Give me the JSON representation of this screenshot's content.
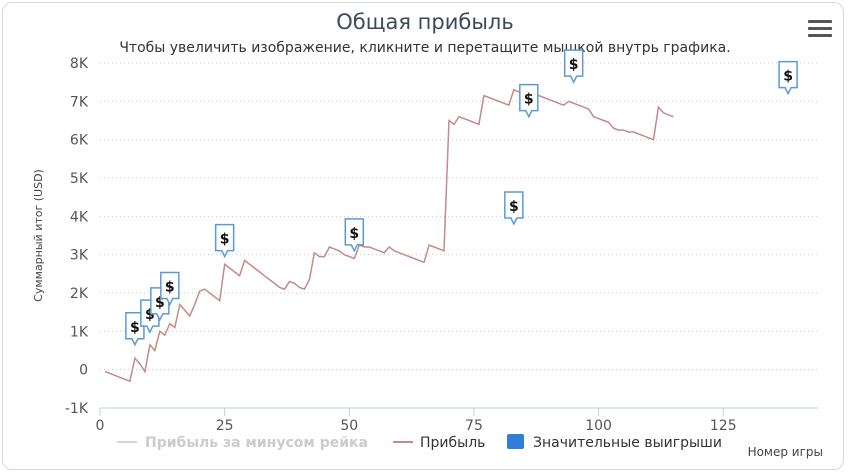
{
  "chart_data": {
    "type": "line",
    "title": "Общая прибыль",
    "subtitle": "Чтобы увеличить изображение, кликните и перетащите мышкой внутрь графика.",
    "xlabel": "Номер игры",
    "ylabel": "Суммарный итог (USD)",
    "xlim": [
      0,
      144
    ],
    "ylim": [
      -1000,
      8000
    ],
    "x_ticks": [
      0,
      25,
      50,
      75,
      100,
      125
    ],
    "x_tick_labels": [
      "0",
      "25",
      "50",
      "75",
      "100",
      "125"
    ],
    "y_ticks": [
      -1000,
      0,
      1000,
      2000,
      3000,
      4000,
      5000,
      6000,
      7000,
      8000
    ],
    "y_tick_labels": [
      "-1K",
      "0",
      "1K",
      "2K",
      "3K",
      "4K",
      "5K",
      "6K",
      "7K",
      "8K"
    ],
    "grid": "horizontal dotted",
    "legend_placement": "bottom",
    "series": [
      {
        "name": "Прибыль за минусом рейка",
        "color": "#d6d6d6",
        "hidden": true,
        "points": []
      },
      {
        "name": "Прибыль",
        "color": "#c48a8a",
        "points": [
          [
            1,
            -50
          ],
          [
            3,
            -150
          ],
          [
            5,
            -250
          ],
          [
            6,
            -300
          ],
          [
            7,
            300
          ],
          [
            8,
            150
          ],
          [
            9,
            -50
          ],
          [
            10,
            650
          ],
          [
            11,
            500
          ],
          [
            12,
            1000
          ],
          [
            13,
            900
          ],
          [
            14,
            1200
          ],
          [
            15,
            1100
          ],
          [
            16,
            1700
          ],
          [
            17,
            1550
          ],
          [
            18,
            1400
          ],
          [
            19,
            1700
          ],
          [
            20,
            2050
          ],
          [
            21,
            2100
          ],
          [
            22,
            2000
          ],
          [
            23,
            1900
          ],
          [
            24,
            1800
          ],
          [
            25,
            2750
          ],
          [
            26,
            2650
          ],
          [
            27,
            2550
          ],
          [
            28,
            2450
          ],
          [
            29,
            2850
          ],
          [
            30,
            2750
          ],
          [
            31,
            2650
          ],
          [
            32,
            2550
          ],
          [
            33,
            2450
          ],
          [
            34,
            2350
          ],
          [
            35,
            2250
          ],
          [
            36,
            2150
          ],
          [
            37,
            2100
          ],
          [
            38,
            2300
          ],
          [
            39,
            2250
          ],
          [
            40,
            2150
          ],
          [
            41,
            2100
          ],
          [
            42,
            2350
          ],
          [
            43,
            3050
          ],
          [
            44,
            2950
          ],
          [
            45,
            2950
          ],
          [
            46,
            3200
          ],
          [
            47,
            3150
          ],
          [
            48,
            3100
          ],
          [
            49,
            3000
          ],
          [
            50,
            2950
          ],
          [
            51,
            2900
          ],
          [
            52,
            3250
          ],
          [
            53,
            3200
          ],
          [
            54,
            3200
          ],
          [
            55,
            3150
          ],
          [
            56,
            3100
          ],
          [
            57,
            3050
          ],
          [
            58,
            3200
          ],
          [
            59,
            3100
          ],
          [
            60,
            3050
          ],
          [
            61,
            3000
          ],
          [
            62,
            2950
          ],
          [
            63,
            2900
          ],
          [
            64,
            2850
          ],
          [
            65,
            2800
          ],
          [
            66,
            3250
          ],
          [
            67,
            3200
          ],
          [
            68,
            3150
          ],
          [
            69,
            3100
          ],
          [
            70,
            6500
          ],
          [
            71,
            6400
          ],
          [
            72,
            6600
          ],
          [
            73,
            6550
          ],
          [
            74,
            6500
          ],
          [
            75,
            6450
          ],
          [
            76,
            6400
          ],
          [
            77,
            7150
          ],
          [
            78,
            7100
          ],
          [
            79,
            7050
          ],
          [
            80,
            7000
          ],
          [
            81,
            6950
          ],
          [
            82,
            6900
          ],
          [
            83,
            7300
          ],
          [
            84,
            7250
          ],
          [
            85,
            7200
          ],
          [
            86,
            7150
          ],
          [
            87,
            7100
          ],
          [
            88,
            7150
          ],
          [
            89,
            7100
          ],
          [
            90,
            7050
          ],
          [
            91,
            7000
          ],
          [
            92,
            6950
          ],
          [
            93,
            6900
          ],
          [
            94,
            7000
          ],
          [
            95,
            6950
          ],
          [
            96,
            6900
          ],
          [
            97,
            6850
          ],
          [
            98,
            6800
          ],
          [
            99,
            6600
          ],
          [
            100,
            6550
          ],
          [
            101,
            6500
          ],
          [
            102,
            6450
          ],
          [
            103,
            6300
          ],
          [
            104,
            6250
          ],
          [
            105,
            6250
          ],
          [
            106,
            6200
          ],
          [
            107,
            6200
          ],
          [
            108,
            6150
          ],
          [
            109,
            6100
          ],
          [
            110,
            6050
          ],
          [
            111,
            6000
          ],
          [
            112,
            6850
          ],
          [
            113,
            6700
          ],
          [
            114,
            6650
          ],
          [
            115,
            6600
          ]
        ]
      },
      {
        "name": "Значительные выигрыши",
        "color": "#2f7ed8",
        "marker_label": "$",
        "points": [
          [
            7,
            650
          ],
          [
            10,
            980
          ],
          [
            12,
            1300
          ],
          [
            14,
            1700
          ],
          [
            25,
            2950
          ],
          [
            51,
            3100
          ],
          [
            83,
            3800
          ],
          [
            86,
            6600
          ],
          [
            95,
            7500
          ],
          [
            138,
            7200
          ]
        ]
      }
    ]
  }
}
